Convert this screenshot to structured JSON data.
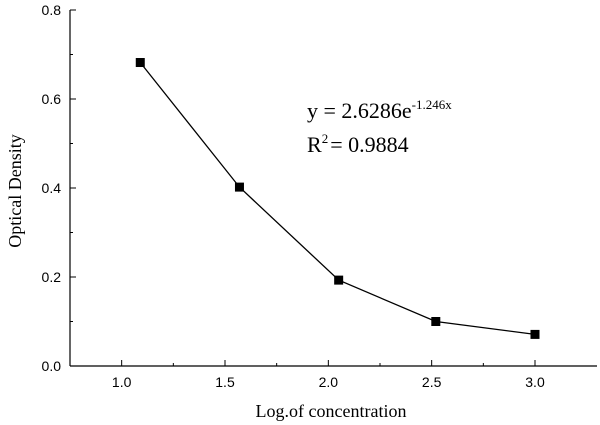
{
  "chart_data": {
    "type": "line",
    "xlabel": "Log.of concentration",
    "ylabel": "Optical Density",
    "xlim": [
      0.75,
      3.3
    ],
    "ylim": [
      0,
      0.8
    ],
    "x_ticks": [
      1.0,
      1.5,
      2.0,
      2.5,
      3.0
    ],
    "x_tick_labels": [
      "1.0",
      "1.5",
      "2.0",
      "2.5",
      "3.0"
    ],
    "y_ticks": [
      0.0,
      0.2,
      0.4,
      0.6,
      0.8
    ],
    "y_tick_labels": [
      "0.0",
      "0.2",
      "0.4",
      "0.6",
      "0.8"
    ],
    "series": [
      {
        "x": [
          1.09,
          1.57,
          2.05,
          2.52,
          3.0
        ],
        "values": [
          0.682,
          0.402,
          0.193,
          0.1,
          0.071
        ],
        "marker": "square",
        "color": "#000000"
      }
    ],
    "annotation": {
      "equation_base": "y = 2.6286e",
      "equation_exponent": "-1.246x",
      "r_squared_prefix": "R",
      "r_squared_power": "2",
      "r_squared_value": "= 0.9884"
    },
    "grid": false,
    "legend": "none"
  }
}
